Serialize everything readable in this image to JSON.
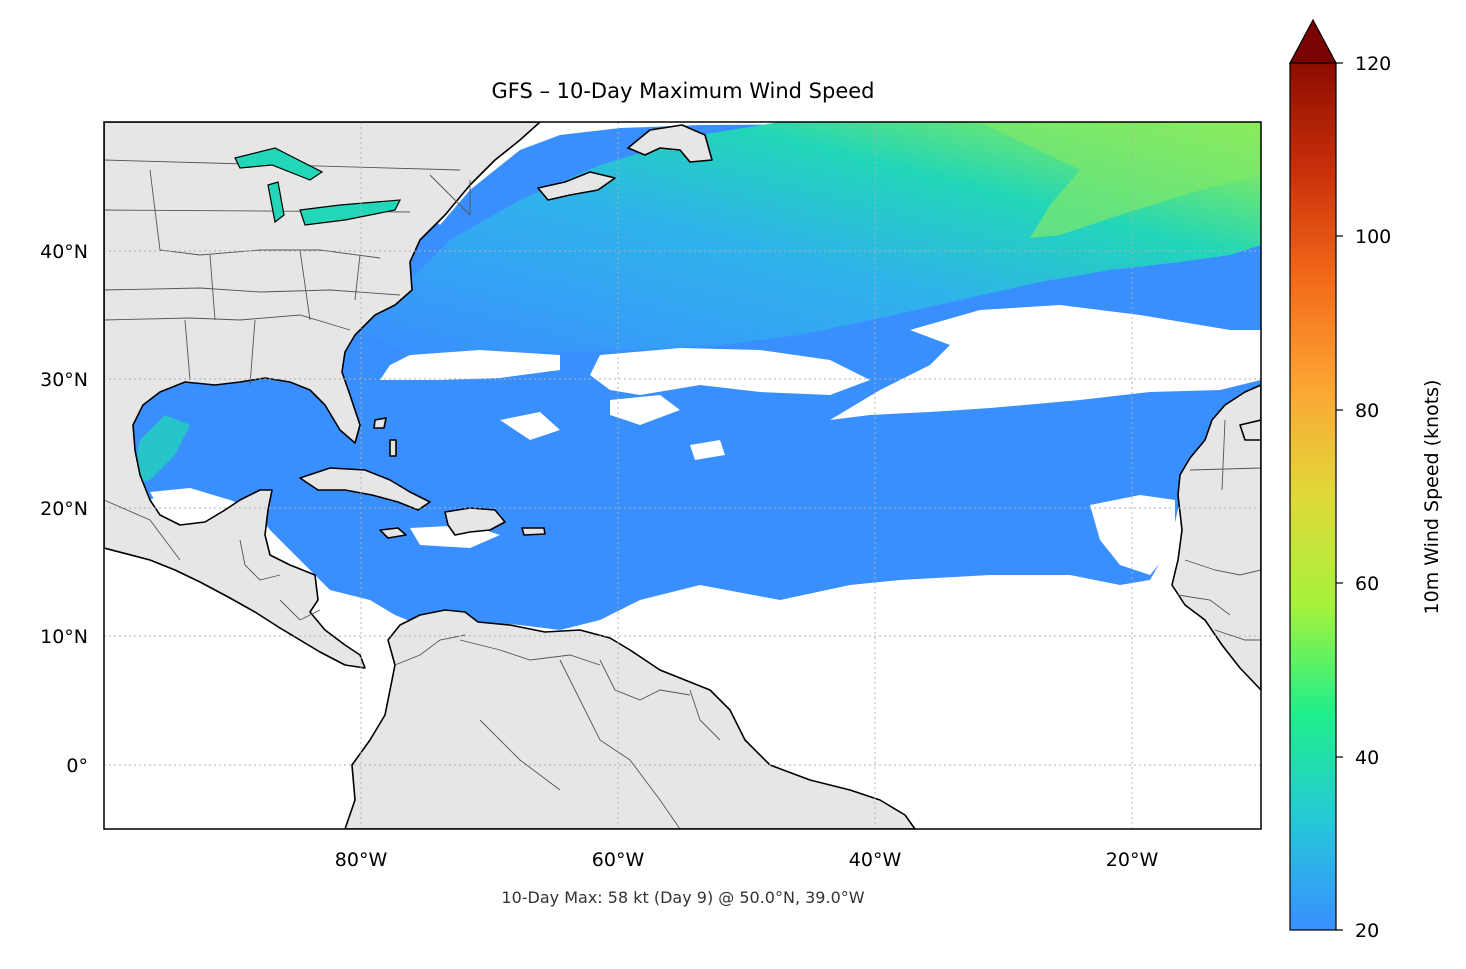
{
  "title": "GFS – 10-Day Maximum Wind Speed",
  "footnote": "10-Day Max: 58 kt (Day 9) @ 50.0°N, 39.0°W",
  "map": {
    "lon_range": [
      -100,
      -10
    ],
    "lat_range": [
      -5,
      50
    ],
    "lon_ticks": [
      {
        "value": -80,
        "label": "80°W"
      },
      {
        "value": -60,
        "label": "60°W"
      },
      {
        "value": -40,
        "label": "40°W"
      },
      {
        "value": -20,
        "label": "20°W"
      }
    ],
    "lat_ticks": [
      {
        "value": 40,
        "label": "40°N"
      },
      {
        "value": 30,
        "label": "30°N"
      },
      {
        "value": 20,
        "label": "20°N"
      },
      {
        "value": 10,
        "label": "10°N"
      },
      {
        "value": 0,
        "label": "0°"
      }
    ],
    "gridlines": true,
    "land_color": "#e6e6e6",
    "ocean_color": "#ffffff",
    "coastline_color": "#000000",
    "border_color": "#555555"
  },
  "colorbar": {
    "label": "10m Wind Speed (knots)",
    "range": [
      20,
      120
    ],
    "ticks": [
      {
        "value": 20,
        "label": "20"
      },
      {
        "value": 40,
        "label": "40"
      },
      {
        "value": 60,
        "label": "60"
      },
      {
        "value": 80,
        "label": "80"
      },
      {
        "value": 100,
        "label": "100"
      },
      {
        "value": 120,
        "label": "120"
      }
    ],
    "colormap": [
      "#3a8fff",
      "#25c8d8",
      "#1ef08a",
      "#a6f23c",
      "#e0d93a",
      "#fca634",
      "#f36a1a",
      "#c9300a",
      "#8c0d00"
    ],
    "extend": "max",
    "extend_color": "#7a0403"
  },
  "max_point": {
    "speed_kt": 58,
    "day": 9,
    "lat": 50.0,
    "lon": -39.0
  }
}
